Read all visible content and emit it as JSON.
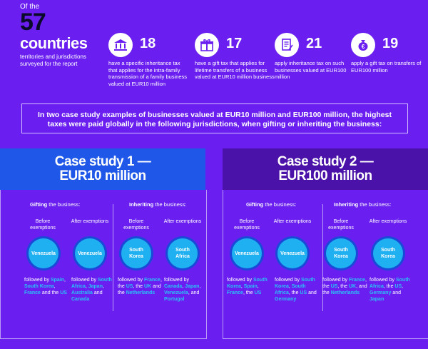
{
  "hero": {
    "of_the": "Of the",
    "count": "57",
    "countries": "countries",
    "surveyed": "territories and jurisdictions surveyed for the report"
  },
  "stats": [
    {
      "number": "18",
      "icon": "bank-icon",
      "text": "have a specific inheritance tax that applies for the intra-family transmission of a family business valued at EUR10 million"
    },
    {
      "number": "17",
      "icon": "gift-icon",
      "text": "have a gift tax that applies for lifetime transfers of a business valued at EUR10 million business"
    },
    {
      "number": "21",
      "icon": "document-icon",
      "text": "apply inheritance tax on such businesses valued at EUR100 million"
    },
    {
      "number": "19",
      "icon": "money-bag-icon",
      "text": "apply a gift tax on transfers of EUR100 million"
    }
  ],
  "intro": "In two case study examples of businesses valued at EUR10 million and EUR100 million, the highest taxes were paid globally in the following jurisdictions, when gifting or inheriting the business:",
  "labels": {
    "gifting_bold": "Gifting",
    "inheriting_bold": "Inheriting",
    "the_business": " the business:",
    "before": "Before exemptions",
    "after": "After exemptions"
  },
  "cases": [
    {
      "title": "Case study 1 — EUR10 million",
      "gift_before": {
        "country": "Venezuela",
        "followed": "followed by ",
        "list": [
          {
            "t": "Spain",
            "h": true
          },
          {
            "t": ", ",
            "h": false
          },
          {
            "t": "South Korea",
            "h": true
          },
          {
            "t": ", ",
            "h": false
          },
          {
            "t": "France",
            "h": true
          },
          {
            "t": " and the ",
            "h": false
          },
          {
            "t": "US",
            "h": true
          }
        ]
      },
      "gift_after": {
        "country": "Venezuela",
        "followed": "followed by ",
        "list": [
          {
            "t": "South Africa",
            "h": true
          },
          {
            "t": ", ",
            "h": false
          },
          {
            "t": "Japan",
            "h": true
          },
          {
            "t": ", ",
            "h": false
          },
          {
            "t": "Australia",
            "h": true
          },
          {
            "t": " and ",
            "h": false
          },
          {
            "t": "Canada",
            "h": true
          }
        ]
      },
      "inherit_before": {
        "country": "South Korea",
        "followed": "followed by ",
        "list": [
          {
            "t": "France",
            "h": true
          },
          {
            "t": ", the ",
            "h": false
          },
          {
            "t": "US",
            "h": true
          },
          {
            "t": ", the ",
            "h": false
          },
          {
            "t": "UK",
            "h": true
          },
          {
            "t": " and the ",
            "h": false
          },
          {
            "t": "Netherlands",
            "h": true
          }
        ]
      },
      "inherit_after": {
        "country": "South Africa",
        "followed": "followed by ",
        "list": [
          {
            "t": "Canada",
            "h": true
          },
          {
            "t": ", ",
            "h": false
          },
          {
            "t": "Japan",
            "h": true
          },
          {
            "t": ", ",
            "h": false
          },
          {
            "t": "Venezuela",
            "h": true
          },
          {
            "t": ", and ",
            "h": false
          },
          {
            "t": "Portugal",
            "h": true
          }
        ]
      }
    },
    {
      "title": "Case study 2 — EUR100 million",
      "gift_before": {
        "country": "Venezuela",
        "followed": "followed by ",
        "list": [
          {
            "t": "South Korea",
            "h": true
          },
          {
            "t": ", ",
            "h": false
          },
          {
            "t": "Spain",
            "h": true
          },
          {
            "t": ", ",
            "h": false
          },
          {
            "t": "France",
            "h": true
          },
          {
            "t": ", the ",
            "h": false
          },
          {
            "t": "US",
            "h": true
          }
        ]
      },
      "gift_after": {
        "country": "Venezuela",
        "followed": "followed by ",
        "list": [
          {
            "t": "South Korea",
            "h": true
          },
          {
            "t": ", ",
            "h": false
          },
          {
            "t": "South Africa",
            "h": true
          },
          {
            "t": ", the ",
            "h": false
          },
          {
            "t": "US",
            "h": true
          },
          {
            "t": " and ",
            "h": false
          },
          {
            "t": "Germany",
            "h": true
          }
        ]
      },
      "inherit_before": {
        "country": "South Korea",
        "followed": "followed by ",
        "list": [
          {
            "t": "France",
            "h": true
          },
          {
            "t": ", the ",
            "h": false
          },
          {
            "t": "US",
            "h": true
          },
          {
            "t": ", the ",
            "h": false
          },
          {
            "t": "UK",
            "h": true
          },
          {
            "t": ", and the ",
            "h": false
          },
          {
            "t": "Netherlands",
            "h": true
          }
        ]
      },
      "inherit_after": {
        "country": "South Korea",
        "followed": "followed by ",
        "list": [
          {
            "t": "South Africa",
            "h": true
          },
          {
            "t": ", the ",
            "h": false
          },
          {
            "t": "US",
            "h": true
          },
          {
            "t": ", ",
            "h": false
          },
          {
            "t": "Germany",
            "h": true
          },
          {
            "t": " and ",
            "h": false
          },
          {
            "t": "Japan",
            "h": true
          }
        ]
      }
    }
  ]
}
